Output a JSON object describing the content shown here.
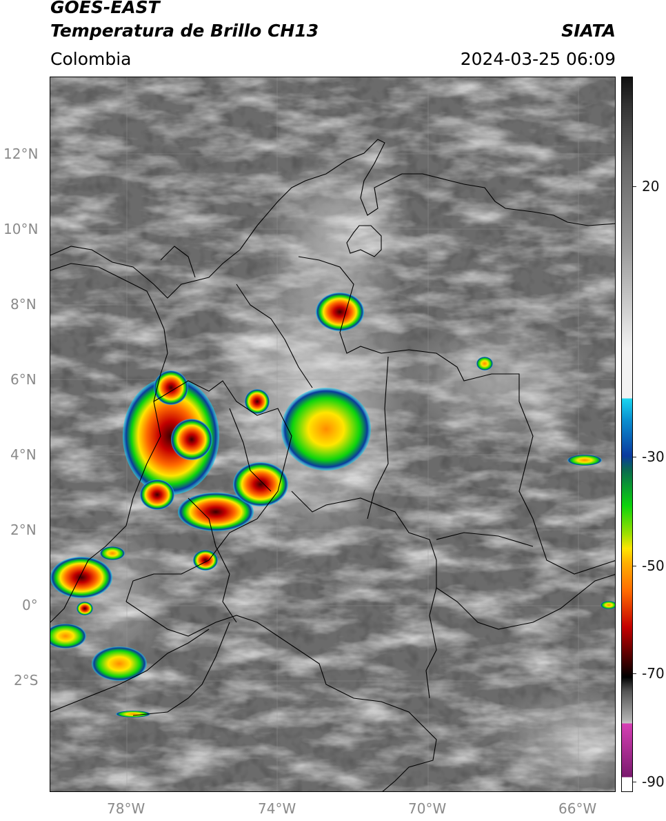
{
  "header": {
    "satellite": "GOES-EAST",
    "product": "Temperatura de Brillo CH13",
    "region": "Colombia",
    "source": "SIATA",
    "datetime": "2024-03-25 06:09"
  },
  "map": {
    "lat_labels": [
      "12°N",
      "10°N",
      "8°N",
      "6°N",
      "4°N",
      "2°N",
      "0°",
      "2°S"
    ],
    "lon_labels": [
      "78°W",
      "74°W",
      "70°W",
      "66°W"
    ],
    "gridlines": true
  },
  "colorbar": {
    "tick_labels": [
      "20",
      "-30",
      "-50",
      "-70",
      "-90"
    ],
    "colors": [
      "#f2f2f2",
      "#1ad6f0",
      "#0a3a9e",
      "#0cd40c",
      "#ffe600",
      "#ff6a00",
      "#c40000",
      "#3a0000",
      "#000000",
      "#b0b0b0",
      "#d63fb4",
      "#7a1a6e",
      "#ffffff"
    ]
  }
}
